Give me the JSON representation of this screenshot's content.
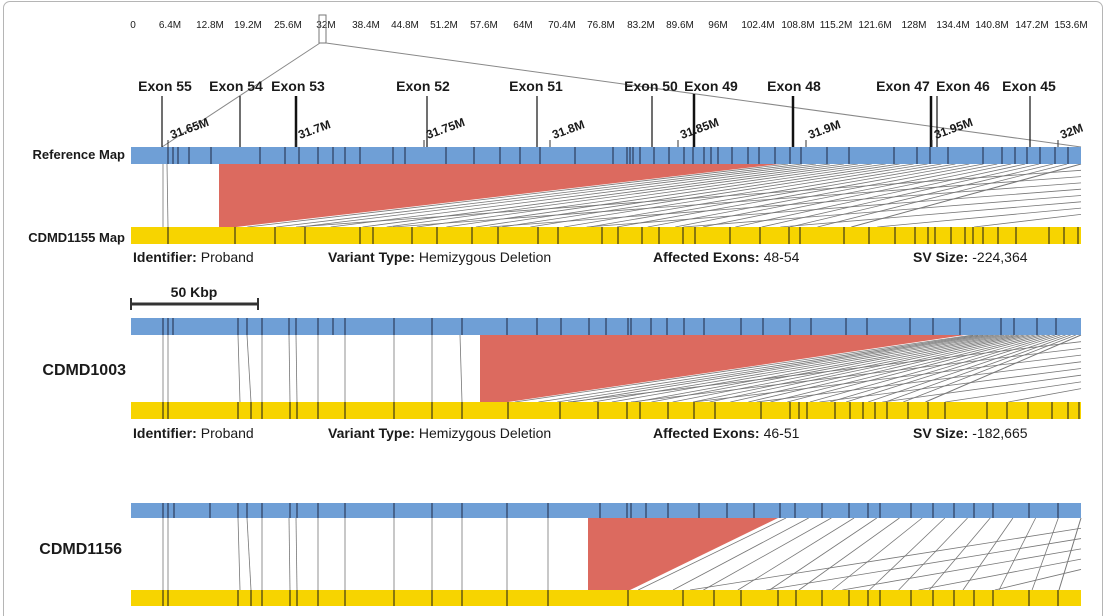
{
  "chromosome": {
    "ticks": [
      "0",
      "6.4M",
      "12.8M",
      "19.2M",
      "25.6M",
      "32M",
      "38.4M",
      "44.8M",
      "51.2M",
      "57.6M",
      "64M",
      "70.4M",
      "76.8M",
      "83.2M",
      "89.6M",
      "96M",
      "102.4M",
      "108.8M",
      "115.2M",
      "121.6M",
      "128M",
      "134.4M",
      "140.8M",
      "147.2M",
      "153.6M"
    ]
  },
  "exons": [
    "Exon 55",
    "Exon 54",
    "Exon 53",
    "Exon 52",
    "Exon 51",
    "Exon 50",
    "Exon 49",
    "Exon 48",
    "Exon 47",
    "Exon 46",
    "Exon 45"
  ],
  "zoom_ticks": [
    "31.65M",
    "31.7M",
    "31.75M",
    "31.8M",
    "31.85M",
    "31.9M",
    "31.95M",
    "32M"
  ],
  "reference_label": "Reference Map",
  "scale_bar": {
    "label": "50 Kbp"
  },
  "samples": [
    {
      "label": "CDMD1155 Map",
      "identifier_key": "Identifier:",
      "identifier": "Proband",
      "variant_key": "Variant Type:",
      "variant": "Hemizygous Deletion",
      "exons_key": "Affected Exons:",
      "exons": "48-54",
      "size_key": "SV Size:",
      "size": "-224,364"
    },
    {
      "label": "CDMD1003",
      "identifier_key": "Identifier:",
      "identifier": "Proband",
      "variant_key": "Variant Type:",
      "variant": "Hemizygous Deletion",
      "exons_key": "Affected Exons:",
      "exons": "46-51",
      "size_key": "SV Size:",
      "size": "-182,665"
    },
    {
      "label": "CDMD1156"
    }
  ],
  "colors": {
    "reference": "#6f9fd6",
    "sample": "#f7d400",
    "deletion": "#dc6a5f",
    "text": "#1a1a1a"
  }
}
